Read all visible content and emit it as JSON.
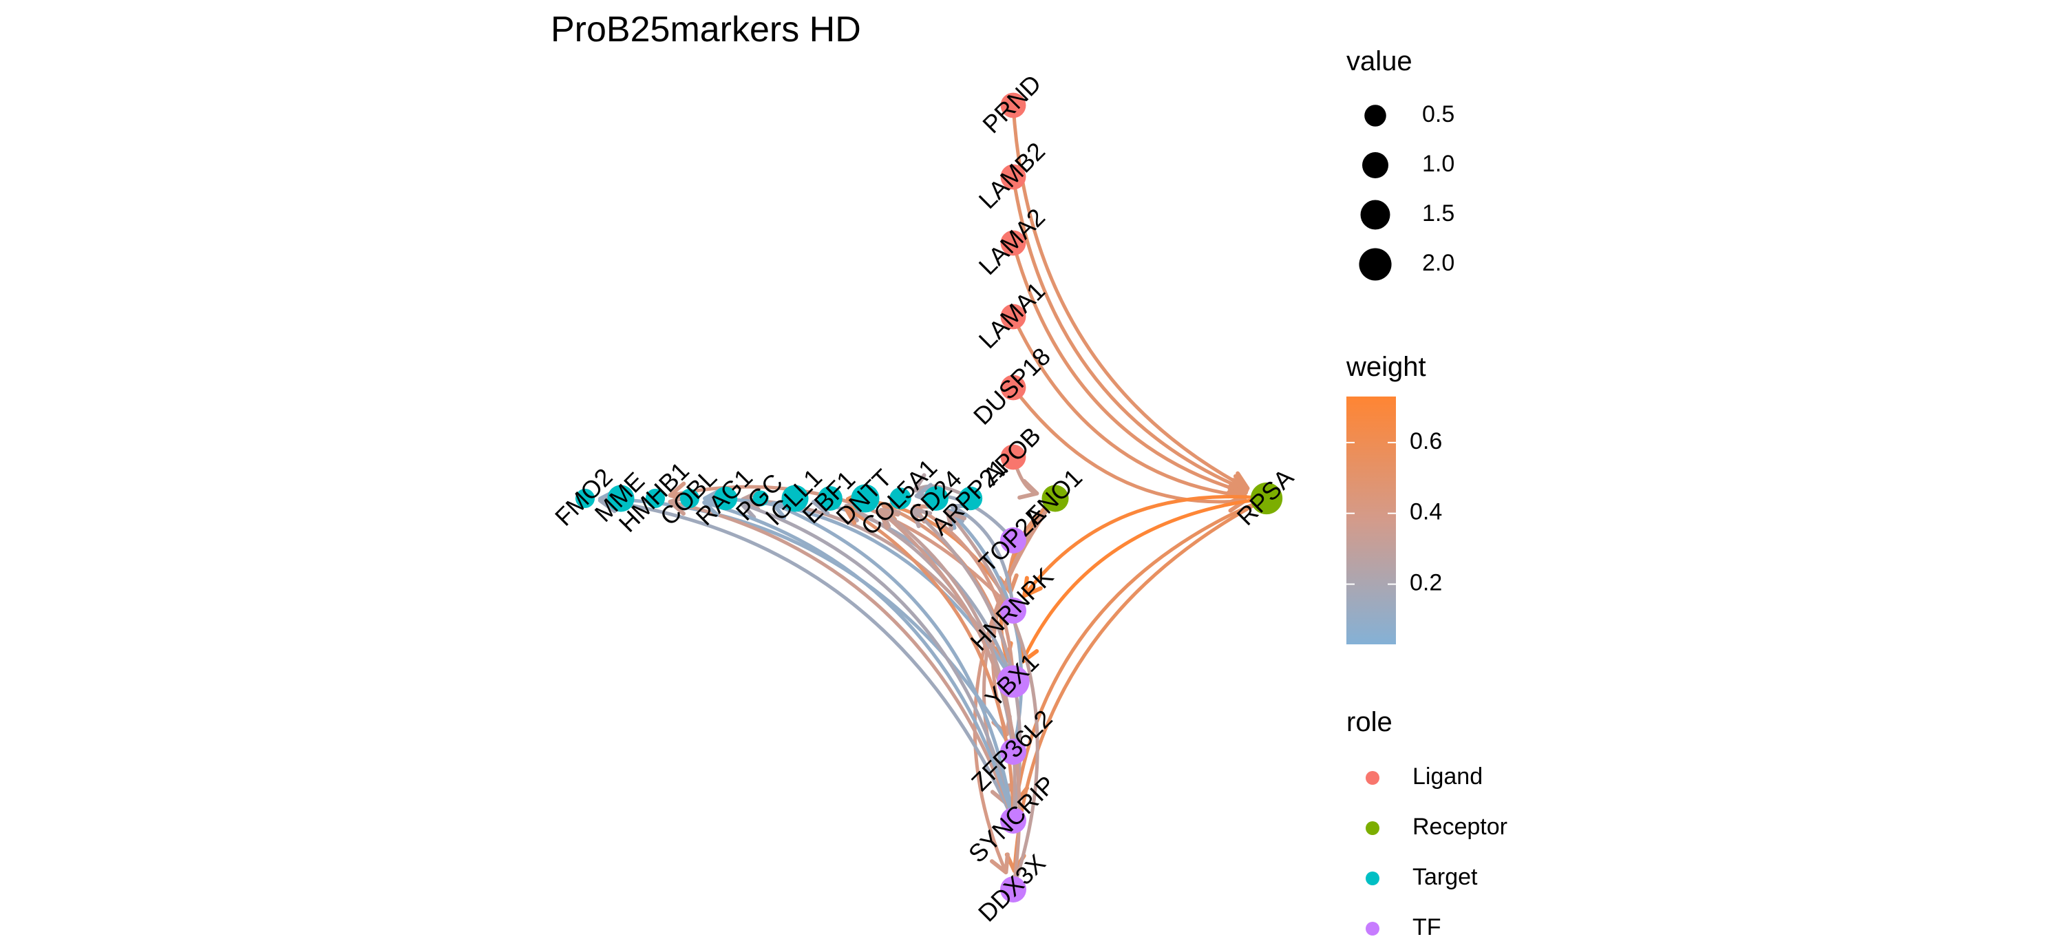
{
  "title": "ProB25markers HD",
  "colors": {
    "Ligand": "#F8766D",
    "Receptor": "#7CAE00",
    "Target": "#00BFC4",
    "TF": "#C77CFF",
    "weight_low": "#84B1D6",
    "weight_mid": "#D39B8B",
    "weight_high": "#FF8533"
  },
  "legend": {
    "value": {
      "title": "value",
      "entries": [
        {
          "label": "0.5",
          "value": 0.5
        },
        {
          "label": "1.0",
          "value": 1.0
        },
        {
          "label": "1.5",
          "value": 1.5
        },
        {
          "label": "2.0",
          "value": 2.0
        }
      ]
    },
    "weight": {
      "title": "weight",
      "min": 0.03,
      "max": 0.73,
      "ticks": [
        {
          "label": "0.6",
          "value": 0.6
        },
        {
          "label": "0.4",
          "value": 0.4
        },
        {
          "label": "0.2",
          "value": 0.2
        }
      ]
    },
    "role": {
      "title": "role",
      "entries": [
        {
          "label": "Ligand",
          "role": "Ligand"
        },
        {
          "label": "Receptor",
          "role": "Receptor"
        },
        {
          "label": "Target",
          "role": "Target"
        },
        {
          "label": "TF",
          "role": "TF"
        }
      ]
    }
  },
  "nodes": [
    {
      "id": "PRND",
      "label": "PRND",
      "role": "Ligand",
      "value": 0.9
    },
    {
      "id": "LAMB2",
      "label": "LAMB2",
      "role": "Ligand",
      "value": 0.9
    },
    {
      "id": "LAMA2",
      "label": "LAMA2",
      "role": "Ligand",
      "value": 0.9
    },
    {
      "id": "LAMA1",
      "label": "LAMA1",
      "role": "Ligand",
      "value": 0.9
    },
    {
      "id": "DUSP18",
      "label": "DUSP18",
      "role": "Ligand",
      "value": 0.9
    },
    {
      "id": "APOB",
      "label": "APOB",
      "role": "Ligand",
      "value": 0.9
    },
    {
      "id": "ENO1",
      "label": "ENO1",
      "role": "Receptor",
      "value": 1.1
    },
    {
      "id": "RPSA",
      "label": "RPSA",
      "role": "Receptor",
      "value": 1.9
    },
    {
      "id": "FMO2",
      "label": "FMO2",
      "role": "Target",
      "value": 0.3
    },
    {
      "id": "MME",
      "label": "MME",
      "role": "Target",
      "value": 1.1
    },
    {
      "id": "HMHB1",
      "label": "HMHB1",
      "role": "Target",
      "value": 0.3
    },
    {
      "id": "COBL",
      "label": "COBL",
      "role": "Target",
      "value": 0.3
    },
    {
      "id": "RAG1",
      "label": "RAG1",
      "role": "Target",
      "value": 0.7
    },
    {
      "id": "PGC",
      "label": "PGC",
      "role": "Target",
      "value": 0.1
    },
    {
      "id": "IGLL1",
      "label": "IGLL1",
      "role": "Target",
      "value": 1.1
    },
    {
      "id": "EBF1",
      "label": "EBF1",
      "role": "Target",
      "value": 0.8
    },
    {
      "id": "DNTT",
      "label": "DNTT",
      "role": "Target",
      "value": 1.3
    },
    {
      "id": "COL5A1",
      "label": "COL5A1",
      "role": "Target",
      "value": 0.5
    },
    {
      "id": "CD24",
      "label": "CD24",
      "role": "Target",
      "value": 0.8
    },
    {
      "id": "ARPP21",
      "label": "ARPP21",
      "role": "Target",
      "value": 0.7
    },
    {
      "id": "TOP2A",
      "label": "TOP2A",
      "role": "TF",
      "value": 1.0
    },
    {
      "id": "HNRNPK",
      "label": "HNRNPK",
      "role": "TF",
      "value": 1.0
    },
    {
      "id": "YBX1",
      "label": "YBX1",
      "role": "TF",
      "value": 2.0
    },
    {
      "id": "ZFP36L2",
      "label": "ZFP36L2",
      "role": "TF",
      "value": 1.0
    },
    {
      "id": "SYNCRIP",
      "label": "SYNCRIP",
      "role": "TF",
      "value": 1.0
    },
    {
      "id": "DDX3X",
      "label": "DDX3X",
      "role": "TF",
      "value": 1.0
    }
  ],
  "edges": [
    {
      "from": "PRND",
      "to": "RPSA",
      "weight": 0.5
    },
    {
      "from": "LAMB2",
      "to": "RPSA",
      "weight": 0.5
    },
    {
      "from": "LAMA2",
      "to": "RPSA",
      "weight": 0.5
    },
    {
      "from": "LAMA1",
      "to": "RPSA",
      "weight": 0.5
    },
    {
      "from": "DUSP18",
      "to": "RPSA",
      "weight": 0.5
    },
    {
      "from": "APOB",
      "to": "ENO1",
      "weight": 0.35
    },
    {
      "from": "RPSA",
      "to": "HNRNPK",
      "weight": 0.7
    },
    {
      "from": "RPSA",
      "to": "YBX1",
      "weight": 0.72
    },
    {
      "from": "RPSA",
      "to": "SYNCRIP",
      "weight": 0.55
    },
    {
      "from": "RPSA",
      "to": "DDX3X",
      "weight": 0.55
    },
    {
      "from": "ENO1",
      "to": "HNRNPK",
      "weight": 0.5
    },
    {
      "from": "ENO1",
      "to": "YBX1",
      "weight": 0.6
    },
    {
      "from": "ENO1",
      "to": "ZFP36L2",
      "weight": 0.4
    },
    {
      "from": "ENO1",
      "to": "SYNCRIP",
      "weight": 0.35
    },
    {
      "from": "ENO1",
      "to": "DDX3X",
      "weight": 0.4
    },
    {
      "from": "HNRNPK",
      "to": "HMHB1",
      "weight": 0.4
    },
    {
      "from": "HNRNPK",
      "to": "EBF1",
      "weight": 0.55
    },
    {
      "from": "HNRNPK",
      "to": "CD24",
      "weight": 0.15
    },
    {
      "from": "YBX1",
      "to": "RAG1",
      "weight": 0.3
    },
    {
      "from": "YBX1",
      "to": "IGLL1",
      "weight": 0.15
    },
    {
      "from": "YBX1",
      "to": "DNTT",
      "weight": 0.45
    },
    {
      "from": "YBX1",
      "to": "COBL",
      "weight": 0.1
    },
    {
      "from": "YBX1",
      "to": "COL5A1",
      "weight": 0.4
    },
    {
      "from": "ZFP36L2",
      "to": "FMO2",
      "weight": 0.1
    },
    {
      "from": "ZFP36L2",
      "to": "EBF1",
      "weight": 0.25
    },
    {
      "from": "ZFP36L2",
      "to": "CD24",
      "weight": 0.1
    },
    {
      "from": "SYNCRIP",
      "to": "FMO2",
      "weight": 0.15
    },
    {
      "from": "SYNCRIP",
      "to": "HMHB1",
      "weight": 0.35
    },
    {
      "from": "SYNCRIP",
      "to": "RAG1",
      "weight": 0.2
    },
    {
      "from": "SYNCRIP",
      "to": "COBL",
      "weight": 0.1
    },
    {
      "from": "SYNCRIP",
      "to": "PGC",
      "weight": 0.1
    },
    {
      "from": "SYNCRIP",
      "to": "EBF1",
      "weight": 0.5
    },
    {
      "from": "SYNCRIP",
      "to": "DNTT",
      "weight": 0.3
    },
    {
      "from": "SYNCRIP",
      "to": "COL5A1",
      "weight": 0.25
    },
    {
      "from": "DDX3X",
      "to": "DNTT",
      "weight": 0.35
    },
    {
      "from": "DDX3X",
      "to": "CD24",
      "weight": 0.3
    },
    {
      "from": "ARPP21",
      "to": "COL5A1",
      "weight": 0.25
    },
    {
      "from": "TOP2A",
      "to": "COL5A1",
      "weight": 0.15
    }
  ]
}
